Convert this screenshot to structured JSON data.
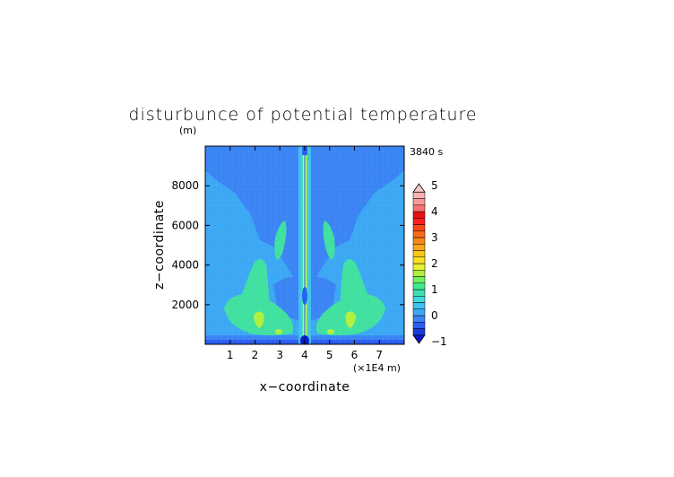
{
  "chart_data": {
    "type": "heatmap",
    "title": "disturbunce of potential temperature",
    "ylabel_unit": "(m)",
    "time_label": "3840 s",
    "xlabel": "x−coordinate",
    "ylabel": "z−coordinate",
    "x_unit": "(×1E4 m)",
    "xlim": [
      0,
      8
    ],
    "ylim": [
      0,
      10000
    ],
    "x_ticks": [
      1,
      2,
      3,
      4,
      5,
      6,
      7
    ],
    "y_ticks": [
      2000,
      4000,
      6000,
      8000
    ],
    "colorbar": {
      "ticks": [
        -1,
        0,
        1,
        2,
        3,
        4,
        5
      ],
      "levels": [
        -1,
        -0.75,
        -0.5,
        -0.25,
        0,
        0.25,
        0.5,
        0.75,
        1,
        1.25,
        1.5,
        1.75,
        2,
        2.25,
        2.5,
        2.75,
        3,
        3.25,
        3.5,
        3.75,
        4,
        4.25,
        4.5,
        4.75,
        5
      ],
      "colors": [
        "#0a18c8",
        "#1a3ade",
        "#2a5ef0",
        "#3a84f4",
        "#3ca8f4",
        "#40c0f0",
        "#40d8d8",
        "#40e0b0",
        "#40e890",
        "#70f060",
        "#b0f040",
        "#e8f030",
        "#f8e020",
        "#f8c818",
        "#f8a818",
        "#f88818",
        "#f86818",
        "#f84818",
        "#f82020",
        "#e81010",
        "#f87070",
        "#f89898",
        "#f8b0b0",
        "#f8c8c8"
      ]
    }
  },
  "colors": {
    "background_field": "#3ca8f4",
    "upper_field": "#3a84f4",
    "cool_core": "#1a3ade",
    "warm_plume": "#40e090",
    "warm_hot": "#b0f040",
    "hottest": "#e8f030"
  }
}
